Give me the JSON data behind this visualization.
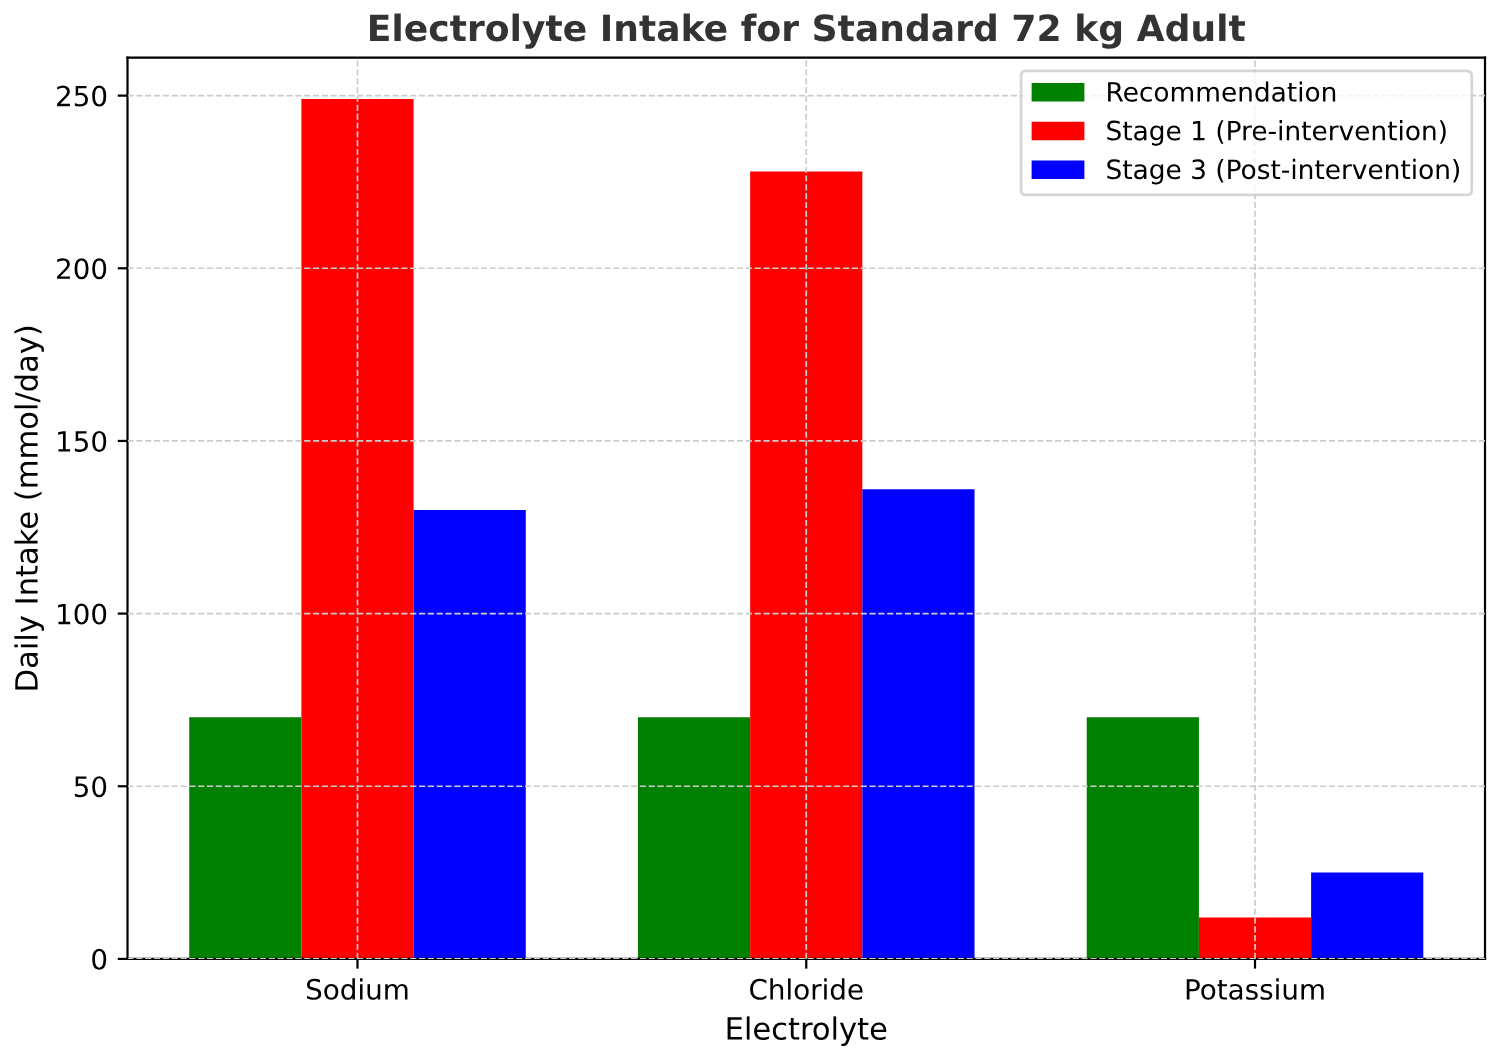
{
  "chart_data": {
    "type": "bar",
    "title": "Electrolyte Intake for Standard 72 kg Adult",
    "xlabel": "Electrolyte",
    "ylabel": "Daily Intake (mmol/day)",
    "categories": [
      "Sodium",
      "Chloride",
      "Potassium"
    ],
    "series": [
      {
        "name": "Recommendation",
        "color": "#008000",
        "values": [
          70,
          70,
          70
        ]
      },
      {
        "name": "Stage 1 (Pre-intervention)",
        "color": "#ff0000",
        "values": [
          249,
          228,
          12
        ]
      },
      {
        "name": "Stage 3 (Post-intervention)",
        "color": "#0000ff",
        "values": [
          130,
          136,
          25
        ]
      }
    ],
    "ylim": [
      0,
      261
    ],
    "yticks": [
      0,
      50,
      100,
      150,
      200,
      250
    ],
    "grid": true,
    "legend": "top right"
  }
}
